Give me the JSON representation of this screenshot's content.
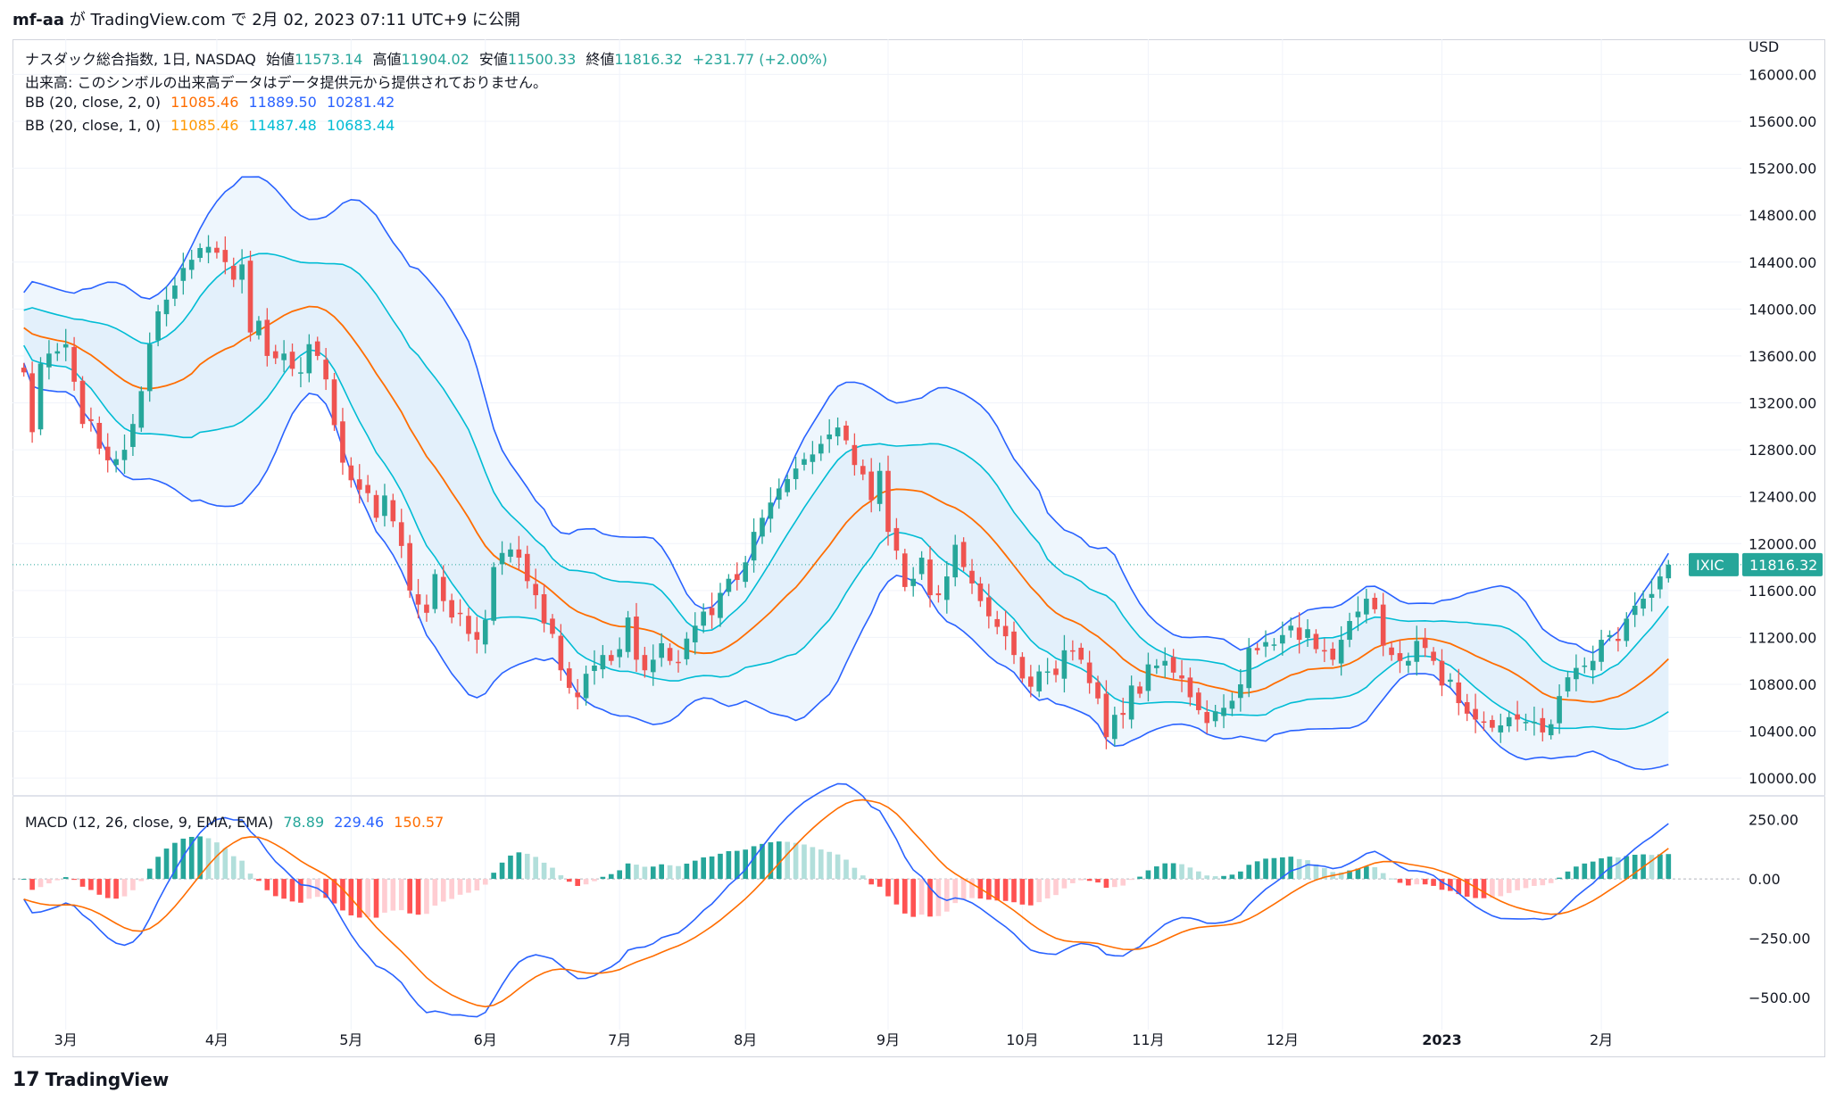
{
  "header": {
    "user": "mf-aa",
    "ga": " が ",
    "site": "TradingView.com",
    "de": " で ",
    "date": "2月 02, 2023 07:11 UTC+9",
    "published": " に公開"
  },
  "legend": {
    "symbol": "ナスダック総合指数, 1日, NASDAQ",
    "open_label": "始値",
    "open": "11573.14",
    "high_label": "高値",
    "high": "11904.02",
    "low_label": "安値",
    "low": "11500.33",
    "close_label": "終値",
    "close": "11816.32",
    "change": "+231.77 (+2.00%)",
    "volume_note": "出来高: このシンボルの出来高データはデータ提供元から提供されておりません。",
    "bb2": {
      "label": "BB (20, close, 2, 0)",
      "basis": "11085.46",
      "upper": "11889.50",
      "lower": "10281.42"
    },
    "bb1": {
      "label": "BB (20, close, 1, 0)",
      "basis": "11085.46",
      "upper": "11487.48",
      "lower": "10683.44"
    },
    "macd": {
      "label": "MACD (12, 26, close, 9, EMA, EMA)",
      "hist": "78.89",
      "macd": "229.46",
      "signal": "150.57"
    }
  },
  "price_axis": {
    "currency": "USD",
    "ticks": [
      "16000.00",
      "15600.00",
      "15200.00",
      "14800.00",
      "14400.00",
      "14000.00",
      "13600.00",
      "13200.00",
      "12800.00",
      "12400.00",
      "12000.00",
      "11600.00",
      "11200.00",
      "10800.00",
      "10400.00",
      "10000.00"
    ],
    "last_symbol": "IXIC",
    "last_value": "11816.32"
  },
  "macd_axis": {
    "ticks": [
      "250.00",
      "0.00",
      "−250.00",
      "−500.00"
    ]
  },
  "time_axis": {
    "labels": [
      "3月",
      "4月",
      "5月",
      "6月",
      "7月",
      "8月",
      "9月",
      "10月",
      "11月",
      "12月",
      "2023",
      "2月"
    ]
  },
  "footer": {
    "brand": "TradingView",
    "logo": "17"
  },
  "colors": {
    "up": "#26a69a",
    "down": "#ef5350",
    "bb_outer": "#2962ff",
    "bb_inner": "#00bcd4",
    "basis": "#ff6d00",
    "fill": "#e8f4fd",
    "macd": "#2962ff",
    "signal": "#ff6d00",
    "hist_up_strong": "#26a69a",
    "hist_up_weak": "#b2dfdb",
    "hist_dn_strong": "#ff5252",
    "hist_dn_weak": "#ffcdd2"
  },
  "chart_data": {
    "type": "candlestick",
    "price_range": [
      9910,
      16300
    ],
    "macd_range": [
      -560,
      320
    ],
    "month_labels_at_index": {
      "3月": 5,
      "4月": 23,
      "5月": 39,
      "6月": 55,
      "7月": 71,
      "8月": 86,
      "9月": 103,
      "10月": 119,
      "11月": 134,
      "12月": 150,
      "2023": 169,
      "2月": 188
    },
    "close": [
      13460,
      12950,
      13535,
      13620,
      13640,
      13700,
      13380,
      13020,
      13045,
      12810,
      12710,
      12720,
      12800,
      13020,
      13300,
      13700,
      13980,
      14080,
      14200,
      14350,
      14420,
      14520,
      14530,
      14480,
      14400,
      14250,
      14380,
      13800,
      13900,
      13600,
      13580,
      13620,
      13490,
      13460,
      13700,
      13600,
      13400,
      13010,
      12690,
      12540,
      12460,
      12430,
      12220,
      12410,
      12190,
      11980,
      11600,
      11480,
      11410,
      11740,
      11510,
      11370,
      11400,
      11230,
      11180,
      11350,
      11800,
      11920,
      11950,
      11880,
      11680,
      11560,
      11320,
      11230,
      10920,
      10770,
      10690,
      10890,
      10960,
      11050,
      11000,
      11100,
      11370,
      11010,
      10920,
      11010,
      11150,
      11000,
      10990,
      11190,
      11300,
      11420,
      11390,
      11580,
      11700,
      11690,
      11840,
      12100,
      12220,
      12350,
      12470,
      12550,
      12640,
      12720,
      12760,
      12850,
      12930,
      12990,
      12880,
      12670,
      12590,
      12370,
      12620,
      12100,
      11940,
      11630,
      11700,
      11880,
      11560,
      11560,
      11720,
      11990,
      11800,
      11660,
      11510,
      11380,
      11290,
      11210,
      11050,
      10850,
      10780,
      10910,
      10910,
      10880,
      11090,
      11080,
      11010,
      10810,
      10680,
      10350,
      10540,
      10540,
      10790,
      10720,
      10970,
      10960,
      11000,
      10900,
      10850,
      10690,
      10580,
      10470,
      10570,
      10600,
      10660,
      10800,
      11110,
      11090,
      11160,
      11140,
      11220,
      11300,
      11180,
      11270,
      11100,
      11080,
      11010,
      11180,
      11340,
      11420,
      11530,
      11440,
      11130,
      11050,
      11000,
      11000,
      11170,
      11110,
      11000,
      10790,
      10840,
      10640,
      10550,
      10500,
      10480,
      10430,
      10450,
      10520,
      10500,
      10480,
      10480,
      10390,
      10460,
      10700,
      10860,
      10940,
      10960,
      11000,
      11180,
      11220,
      11170,
      11360,
      11470,
      11530,
      11570,
      11720,
      11820
    ]
  }
}
